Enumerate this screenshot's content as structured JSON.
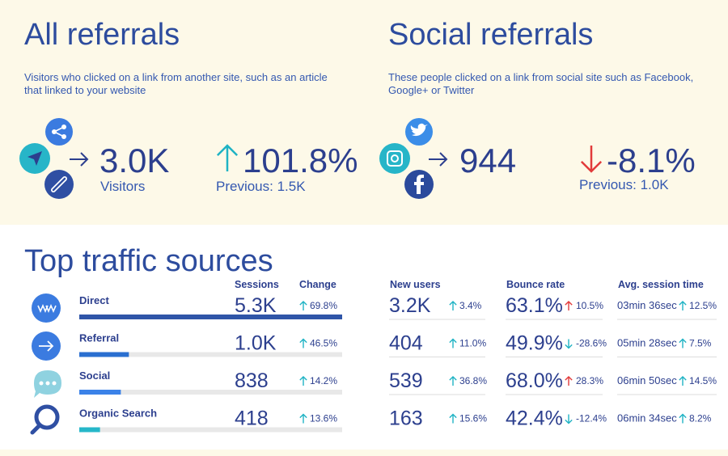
{
  "all_referrals": {
    "title": "All referrals",
    "description": [
      "Visitors who clicked on a link from another site, such as an article",
      "that linked to your website"
    ],
    "value": "3.0K",
    "value_label": "Visitors",
    "change": "101.8%",
    "previous": "Previous: 1.5K"
  },
  "social_referrals": {
    "title": "Social referrals",
    "description": [
      "These people clicked on a link from social site such as Facebook,",
      "Google+ or Twitter"
    ],
    "value": "944",
    "change": "-8.1%",
    "previous": "Previous: 1.0K"
  },
  "top_traffic": {
    "title": "Top traffic sources",
    "columns": [
      "Sessions",
      "Change",
      "New users",
      "Bounce rate",
      "Avg. session time"
    ],
    "bar_colors": [
      "#2f55a8",
      "#2a6fd0",
      "#3b82e8",
      "#26b7c9"
    ],
    "rows": [
      {
        "source": "Direct",
        "sessions": {
          "value": 5300,
          "label": "5.3K"
        },
        "change": "69.8%",
        "new_users": "3.2K",
        "new_users_change": "3.4%",
        "bounce_rate": "63.1%",
        "bounce_rate_change": "10.5%",
        "session_time": "03min 36sec",
        "session_time_change": "12.5%"
      },
      {
        "source": "Referral",
        "sessions": {
          "value": 1000,
          "label": "1.0K"
        },
        "change": "46.5%",
        "new_users": "404",
        "new_users_change": "11.0%",
        "bounce_rate": "49.9%",
        "bounce_rate_change": "-28.6%",
        "session_time": "05min 28sec",
        "session_time_change": "7.5%"
      },
      {
        "source": "Social",
        "sessions": {
          "value": 838,
          "label": "838"
        },
        "change": "14.2%",
        "new_users": "539",
        "new_users_change": "36.8%",
        "bounce_rate": "68.0%",
        "bounce_rate_change": "28.3%",
        "session_time": "06min 50sec",
        "session_time_change": "14.5%"
      },
      {
        "source": "Organic Search",
        "sessions": {
          "value": 418,
          "label": "418"
        },
        "change": "13.6%",
        "new_users": "163",
        "new_users_change": "15.6%",
        "bounce_rate": "42.4%",
        "bounce_rate_change": "-12.4%",
        "session_time": "06min 34sec",
        "session_time_change": "8.2%"
      }
    ]
  }
}
